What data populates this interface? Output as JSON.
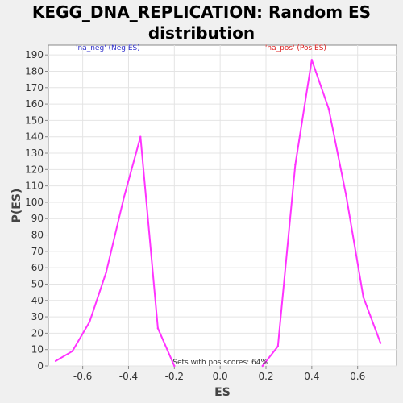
{
  "chart_data": {
    "type": "line",
    "title_lines": [
      "KEGG_DNA_REPLICATION: Random ES",
      "distribution"
    ],
    "xlabel": "ES",
    "ylabel": "P(ES)",
    "xlim": [
      -0.75,
      0.77
    ],
    "ylim": [
      0,
      196
    ],
    "xticks": [
      -0.6,
      -0.4,
      -0.2,
      0.0,
      0.2,
      0.4,
      0.6
    ],
    "xtick_labels": [
      "-0.6",
      "-0.4",
      "-0.2",
      "0.0",
      "0.2",
      "0.4",
      "0.6"
    ],
    "yticks": [
      0,
      10,
      20,
      30,
      40,
      50,
      60,
      70,
      80,
      90,
      100,
      110,
      120,
      130,
      140,
      150,
      160,
      170,
      180,
      190
    ],
    "grid": true,
    "series": [
      {
        "name": "'na_neg' (Neg ES)",
        "color": "#ff33ff",
        "x": [
          -0.718,
          -0.645,
          -0.57,
          -0.498,
          -0.42,
          -0.348,
          -0.272,
          -0.2
        ],
        "y": [
          3,
          9,
          27,
          57,
          103,
          140,
          23,
          0
        ]
      },
      {
        "name": "'na_pos' (Pos ES)",
        "color": "#ff33ff",
        "x": [
          0.185,
          0.252,
          0.328,
          0.4,
          0.474,
          0.55,
          0.625,
          0.7
        ],
        "y": [
          0,
          12,
          123,
          187,
          157,
          104,
          42,
          14
        ]
      }
    ],
    "annotations": [
      {
        "text": "'na_neg' (Neg ES)",
        "color": "#3333cc",
        "x": -0.49,
        "y": 193
      },
      {
        "text": "'na_pos' (Pos ES)",
        "color": "#dd2222",
        "x": 0.33,
        "y": 193
      },
      {
        "text": "Sets with pos scores: 64%",
        "color": "#333333",
        "x": 0.0,
        "y": 1
      }
    ]
  }
}
